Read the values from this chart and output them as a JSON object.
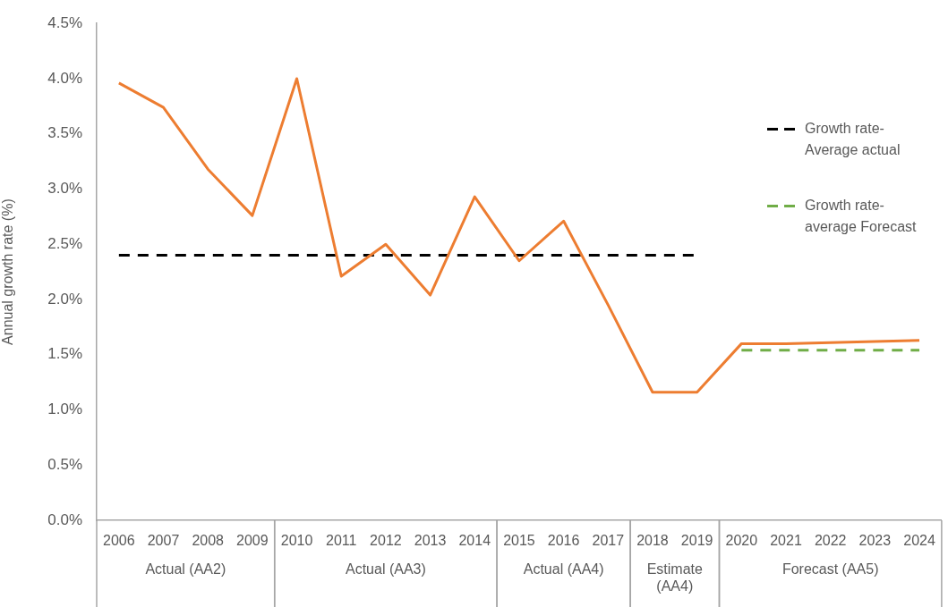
{
  "chart_data": {
    "type": "line",
    "ylabel": "Annual growth rate (%)",
    "categories": [
      "2006",
      "2007",
      "2008",
      "2009",
      "2010",
      "2011",
      "2012",
      "2013",
      "2014",
      "2015",
      "2016",
      "2017",
      "2018",
      "2019",
      "2020",
      "2021",
      "2022",
      "2023",
      "2024"
    ],
    "series": [
      {
        "color": "#ed7d31",
        "values": [
          3.96,
          3.74,
          3.18,
          2.76,
          4.0,
          2.21,
          2.5,
          2.04,
          2.93,
          2.35,
          2.71,
          1.95,
          1.16,
          1.16,
          1.6,
          1.6,
          1.61,
          1.62,
          1.63
        ]
      },
      {
        "name": "Growth rate-Average actual",
        "color": "#000000",
        "line_style": "dashed",
        "values": [
          2.4,
          2.4,
          2.4,
          2.4,
          2.4,
          2.4,
          2.4,
          2.4,
          2.4,
          2.4,
          2.4,
          2.4,
          2.4,
          2.4,
          null,
          null,
          null,
          null,
          null
        ]
      },
      {
        "name": "Growth rate-average Forecast",
        "color": "#70ad47",
        "line_style": "dashed",
        "values": [
          null,
          null,
          null,
          null,
          null,
          null,
          null,
          null,
          null,
          null,
          null,
          null,
          null,
          null,
          1.54,
          1.54,
          1.54,
          1.54,
          1.54
        ]
      }
    ],
    "ylim": [
      0,
      4.5
    ],
    "yticks": [
      {
        "value": 0,
        "label": "0.0%"
      },
      {
        "value": 0.5,
        "label": "0.5%"
      },
      {
        "value": 1,
        "label": "1.0%"
      },
      {
        "value": 1.5,
        "label": "1.5%"
      },
      {
        "value": 2,
        "label": "2.0%"
      },
      {
        "value": 2.5,
        "label": "2.5%"
      },
      {
        "value": 3,
        "label": "3.0%"
      },
      {
        "value": 3.5,
        "label": "3.5%"
      },
      {
        "value": 4,
        "label": "4.0%"
      },
      {
        "value": 4.5,
        "label": "4.5%"
      }
    ],
    "grid": false,
    "legend": "top right",
    "marker": "none",
    "line_style": "solid",
    "annotations": [
      "Actual (AA2)",
      "Actual (AA3)",
      "Actual (AA4)",
      "Estimate (AA4)",
      "Forecast (AA5)"
    ]
  }
}
